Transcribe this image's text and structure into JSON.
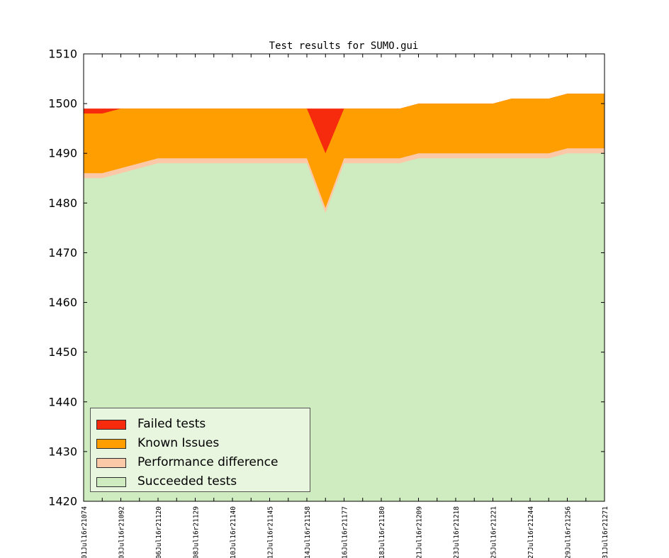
{
  "figure": {
    "title": "Test results for SUMO.gui"
  },
  "legend": {
    "position": "lower-left",
    "items": [
      {
        "label": "Failed tests",
        "color": "#f62a0d"
      },
      {
        "label": "Known Issues",
        "color": "#ff9e00"
      },
      {
        "label": "Performance difference",
        "color": "#fcc9a8"
      },
      {
        "label": "Succeeded tests",
        "color": "#cfecc0"
      }
    ]
  },
  "chart_data": {
    "type": "area",
    "stacked": true,
    "title": "Test results for SUMO.gui",
    "ylim": [
      1420,
      1510
    ],
    "ytick_step": 10,
    "grid": false,
    "x_points": 29,
    "x_labeled_every": 2,
    "x_tick_labels": [
      "01Jul16r21074",
      "03Jul16r21092",
      "06Jul16r21120",
      "08Jul16r21129",
      "10Jul16r21140",
      "12Jul16r21145",
      "14Jul16r21158",
      "16Jul16r21177",
      "18Jul16r21180",
      "21Jul16r21209",
      "23Jul16r21218",
      "25Jul16r21221",
      "27Jul16r21244",
      "29Jul16r21256",
      "31Jul16r21271"
    ],
    "series": [
      {
        "name": "Succeeded tests",
        "color": "#cfecc0",
        "values": [
          1485,
          1485,
          1486,
          1487,
          1488,
          1488,
          1488,
          1488,
          1488,
          1488,
          1488,
          1488,
          1488,
          1478,
          1488,
          1488,
          1488,
          1488,
          1489,
          1489,
          1489,
          1489,
          1489,
          1489,
          1489,
          1489,
          1490,
          1490,
          1490
        ]
      },
      {
        "name": "Performance difference",
        "color": "#fcc9a8",
        "values": [
          1,
          1,
          1,
          1,
          1,
          1,
          1,
          1,
          1,
          1,
          1,
          1,
          1,
          1,
          1,
          1,
          1,
          1,
          1,
          1,
          1,
          1,
          1,
          1,
          1,
          1,
          1,
          1,
          1
        ]
      },
      {
        "name": "Known Issues",
        "color": "#ff9e00",
        "values": [
          12,
          12,
          12,
          11,
          10,
          10,
          10,
          10,
          10,
          10,
          10,
          10,
          10,
          11,
          10,
          10,
          10,
          10,
          10,
          10,
          10,
          10,
          10,
          11,
          11,
          11,
          11,
          11,
          11
        ]
      },
      {
        "name": "Failed tests",
        "color": "#f62a0d",
        "values": [
          1,
          1,
          0,
          0,
          0,
          0,
          0,
          0,
          0,
          0,
          0,
          0,
          0,
          9,
          0,
          0,
          0,
          0,
          0,
          0,
          0,
          0,
          0,
          0,
          0,
          0,
          0,
          0,
          0
        ]
      }
    ]
  }
}
